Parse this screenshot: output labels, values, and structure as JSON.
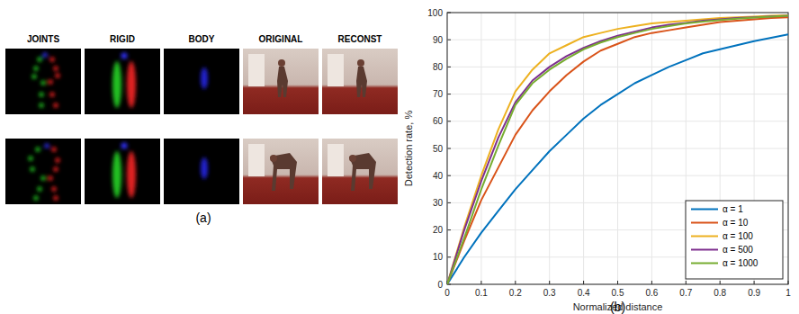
{
  "figure": {
    "panel_a": {
      "columns": [
        "JOINTS",
        "RIGID",
        "BODY",
        "ORIGINAL",
        "RECONST"
      ],
      "caption": "(a)"
    },
    "panel_b": {
      "caption": "(b)"
    }
  },
  "chart_data": {
    "type": "line",
    "x_label": "Normalized distance",
    "y_label": "Detection rate, %",
    "x": [
      0,
      0.05,
      0.1,
      0.15,
      0.2,
      0.25,
      0.3,
      0.35,
      0.4,
      0.45,
      0.5,
      0.55,
      0.6,
      0.65,
      0.7,
      0.75,
      0.8,
      0.85,
      0.9,
      0.95,
      1
    ],
    "xlim": [
      0,
      1
    ],
    "xticks": [
      0,
      0.1,
      0.2,
      0.3,
      0.4,
      0.5,
      0.6,
      0.7,
      0.8,
      0.9,
      1
    ],
    "ylim": [
      0,
      100
    ],
    "yticks": [
      0,
      10,
      20,
      30,
      40,
      50,
      60,
      70,
      80,
      90,
      100
    ],
    "grid": true,
    "legend": "bottom-right",
    "series": [
      {
        "name": "α = 1",
        "color": "#0072bd",
        "values": [
          0,
          10,
          19,
          27,
          35,
          42,
          49,
          55,
          61,
          66,
          70,
          74,
          77,
          80,
          82.5,
          85,
          86.5,
          88,
          89.5,
          90.7,
          92
        ]
      },
      {
        "name": "α = 10",
        "color": "#d95319",
        "values": [
          0,
          16,
          31,
          43,
          55,
          64,
          71,
          77,
          82,
          86,
          88.5,
          91,
          92.5,
          93.5,
          94.5,
          95.5,
          96.5,
          97,
          97.5,
          98,
          98.3
        ]
      },
      {
        "name": "α = 100",
        "color": "#edb120",
        "values": [
          0,
          21,
          40,
          57,
          71,
          79,
          85,
          88,
          91,
          92.5,
          94,
          95,
          96,
          96.5,
          97,
          97.5,
          98,
          98.3,
          98.5,
          98.8,
          99
        ]
      },
      {
        "name": "α = 500",
        "color": "#7e2f8e",
        "values": [
          0,
          20,
          38,
          54,
          67,
          75,
          80,
          84,
          87,
          89.5,
          91.5,
          93,
          94.5,
          95.5,
          96.2,
          97,
          97.5,
          98,
          98.3,
          98.6,
          98.8
        ]
      },
      {
        "name": "α = 1000",
        "color": "#77ac30",
        "values": [
          0,
          17,
          35,
          51,
          66,
          74,
          79,
          83,
          86.5,
          89,
          91,
          92.5,
          94,
          95,
          96,
          96.7,
          97.3,
          97.8,
          98.2,
          98.5,
          98.8
        ]
      }
    ]
  }
}
